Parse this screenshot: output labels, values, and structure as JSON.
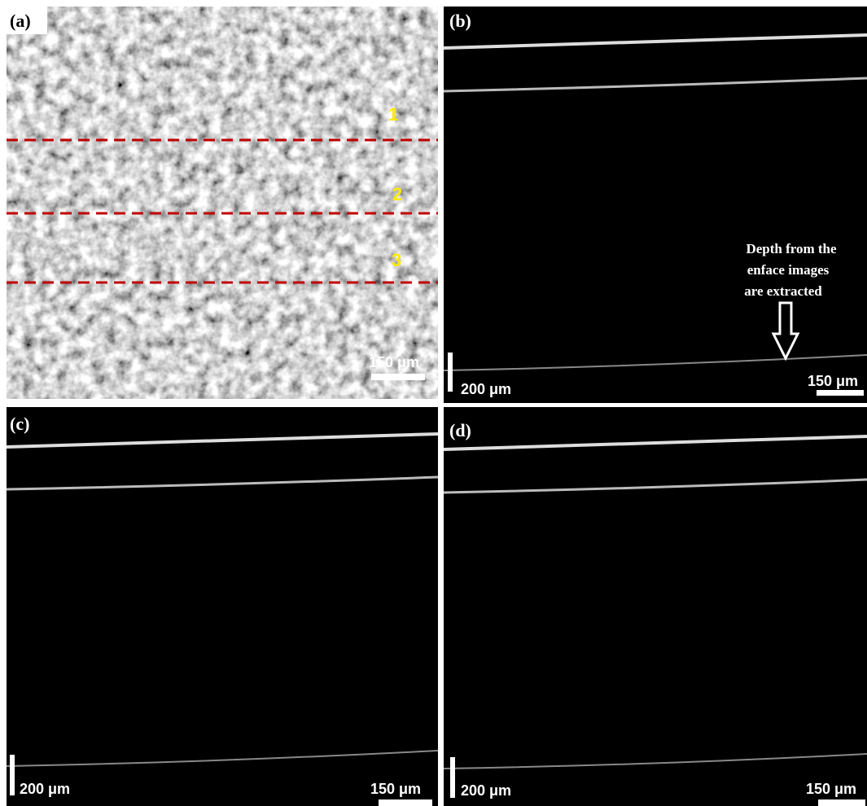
{
  "panels": [
    {
      "label": "(a)",
      "region_labels": [
        "1",
        "2",
        "3"
      ],
      "scale_bar": "150 μm"
    },
    {
      "label": "(b)",
      "annotation": [
        "Depth from the",
        "enface images",
        "are extracted"
      ],
      "depth_bar": "200 μm",
      "scale_bar": "150 μm"
    },
    {
      "label": "(c)",
      "depth_bar": "200 μm",
      "scale_bar": "150 μm"
    },
    {
      "label": "(d)",
      "depth_bar": "200 μm",
      "scale_bar": "150 μm"
    }
  ]
}
